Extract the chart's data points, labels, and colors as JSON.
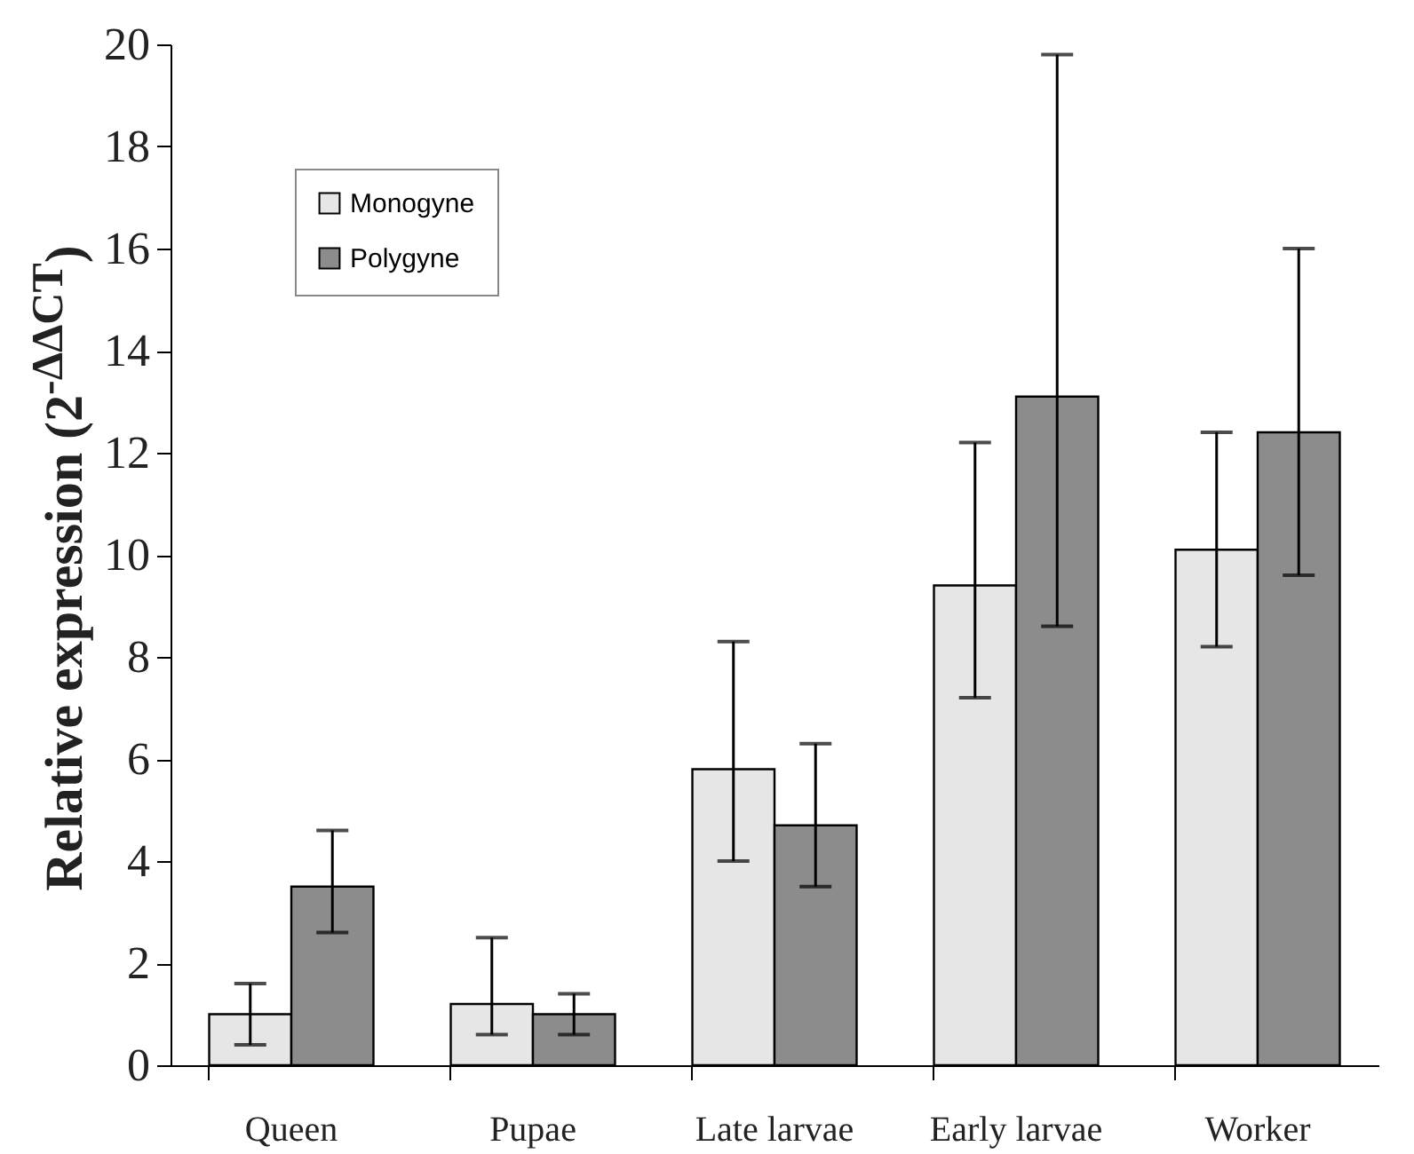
{
  "chart_data": {
    "type": "bar",
    "ylabel": "Relative expression (2$^{-ΔΔCT}$)",
    "categories": [
      "Queen",
      "Pupae",
      "Late larvae",
      "Early larvae",
      "Worker"
    ],
    "series": [
      {
        "name": "Monogyne",
        "color": "#e6e6e6",
        "values": [
          1.0,
          1.2,
          5.8,
          9.4,
          10.1
        ],
        "errors": [
          [
            0.4,
            1.6
          ],
          [
            0.6,
            2.5
          ],
          [
            4.0,
            8.3
          ],
          [
            7.2,
            12.2
          ],
          [
            8.2,
            12.4
          ]
        ]
      },
      {
        "name": "Polygyne",
        "color": "#8c8c8c",
        "values": [
          3.5,
          1.0,
          4.7,
          13.1,
          12.4
        ],
        "errors": [
          [
            2.6,
            4.6
          ],
          [
            0.6,
            1.4
          ],
          [
            3.5,
            6.3
          ],
          [
            8.6,
            19.8
          ],
          [
            9.6,
            16.0
          ]
        ]
      }
    ],
    "ylim": [
      0,
      20
    ],
    "yticks": [
      0,
      2,
      4,
      6,
      8,
      10,
      12,
      14,
      16,
      18,
      20
    ],
    "grid": false,
    "legend": "top left"
  }
}
